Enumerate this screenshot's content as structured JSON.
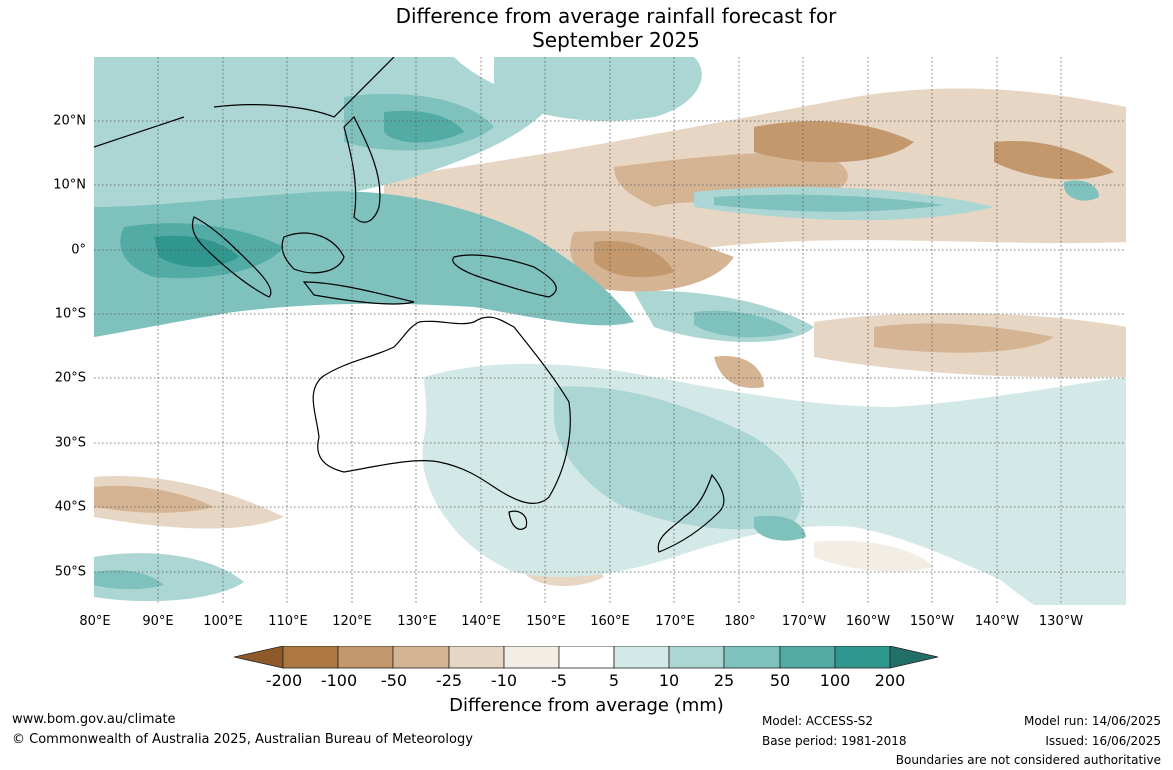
{
  "title": {
    "line1": "Difference from average rainfall forecast for",
    "line2": "September 2025"
  },
  "map": {
    "latitude_labels": [
      "20°N",
      "10°N",
      "0°",
      "10°S",
      "20°S",
      "30°S",
      "40°S",
      "50°S"
    ],
    "longitude_labels": [
      "80°E",
      "90°E",
      "100°E",
      "110°E",
      "120°E",
      "130°E",
      "140°E",
      "150°E",
      "160°E",
      "170°E",
      "180°",
      "170°W",
      "160°W",
      "150°W",
      "140°W",
      "130°W"
    ],
    "colors": {
      "dry_200": "#8f5a2a",
      "dry_100": "#ad7742",
      "dry_50": "#c3986c",
      "dry_25": "#d5b494",
      "dry_10": "#e7d6c4",
      "dry_5": "#f2ede5",
      "neutral": "#ffffff",
      "wet_10": "#d3e9e7",
      "wet_25": "#abd6d3",
      "wet_50": "#7fc2bd",
      "wet_100": "#52aba5",
      "wet_200": "#2f9690",
      "wet_max": "#226e69"
    }
  },
  "colorbar": {
    "ticks": [
      "-200",
      "-100",
      "-50",
      "-25",
      "-10",
      "-5",
      "5",
      "10",
      "25",
      "50",
      "100",
      "200"
    ],
    "label": "Difference from average (mm)"
  },
  "footer": {
    "website": "www.bom.gov.au/climate",
    "copyright": "© Commonwealth of Australia 2025, Australian Bureau of Meteorology",
    "model": "Model: ACCESS-S2",
    "base_period": "Base period: 1981-2018",
    "model_run": "Model run: 14/06/2025",
    "issued": "Issued: 16/06/2025",
    "disclaimer": "Boundaries are not considered authoritative"
  }
}
